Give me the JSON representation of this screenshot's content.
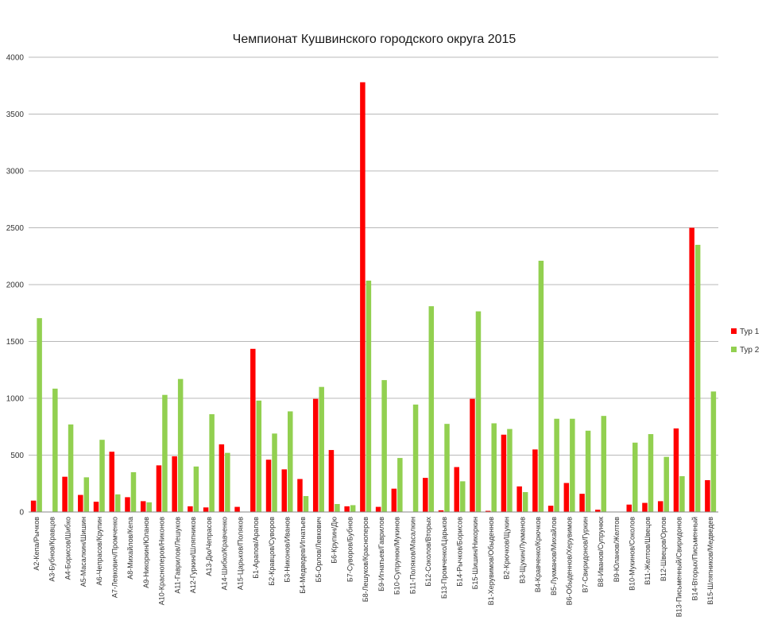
{
  "chart_data": {
    "type": "bar",
    "title": "Чемпионат Кушвинского городского округа 2015",
    "xlabel": "",
    "ylabel": "",
    "ylim": [
      0,
      4000
    ],
    "yticks": [
      0,
      500,
      1000,
      1500,
      2000,
      2500,
      3000,
      3500,
      4000
    ],
    "grid": true,
    "legend_position": "right",
    "categories": [
      "А2-Кепа/Рычков",
      "А3-Бубнов/Кравцов",
      "А4-Борисов/Шибко",
      "А5-Масалкин/Шишин",
      "А6-Чепрасов/Крупин",
      "А7-Левкович/Промченко",
      "А8-Михайлов/Кепа",
      "А9-Никоркин/Юланов",
      "А10-Красноперов/Никонов",
      "А11-Гаврилов/Лешуков",
      "А12-Гуркин/Шляпников",
      "А13-Дю/Чепрасов",
      "А14-Шибко/Кравченко",
      "А15-Царьков/Поляков",
      "Б1-Арапов/Арапов",
      "Б2-Кравцов/Суворов",
      "Б3-Никонов/Иванов",
      "Б4-Медведев/Игнатьев",
      "Б5-Орлов/Левкович",
      "Б6-Крупин/Дю",
      "Б7-Суворов/Бубнов",
      "Б8-Лешуков/Красноперов",
      "Б9-Игнатьев/Гаврилов",
      "Б10-Супрунюк/Мукинов",
      "Б11-Поляков/Масалкин",
      "Б12-Соколов/Вторых",
      "Б13-Промченко/Царьков",
      "Б14-Рычков/Борисов",
      "Б15-Шишин/Никоркин",
      "В1-Херувимов/Обыденнов",
      "В2-Крючков/Щукин",
      "В3-Щукин/Лукманов",
      "В4-Кравченко/Крючков",
      "В5-Лукманов/Михайлов",
      "В6-Обыденнов/Херувимов",
      "В7-Свиридонов/Гуркин",
      "В8-Иванов/Супрунюк",
      "В9-Юланов/Желтов",
      "В10-Мукинов/Соколов",
      "В11-Желтов/Швецов",
      "В12-Швецов/Орлов",
      "В13-Письменный/Свиридонов",
      "В14-Вторых/Письменный",
      "В15-Шляпников/Медведев"
    ],
    "series": [
      {
        "name": "Тур 1",
        "color": "#ff0000",
        "values": [
          100,
          0,
          310,
          150,
          90,
          530,
          130,
          95,
          410,
          490,
          50,
          40,
          595,
          45,
          1435,
          460,
          375,
          290,
          995,
          545,
          50,
          3780,
          45,
          205,
          0,
          300,
          15,
          395,
          995,
          10,
          680,
          225,
          550,
          55,
          255,
          160,
          20,
          0,
          65,
          80,
          95,
          735,
          2500,
          280
        ]
      },
      {
        "name": "Тур 2",
        "color": "#92d050",
        "values": [
          1705,
          1085,
          770,
          305,
          635,
          155,
          350,
          85,
          1030,
          1170,
          400,
          860,
          520,
          0,
          980,
          690,
          885,
          140,
          1100,
          70,
          60,
          2035,
          1160,
          475,
          945,
          1810,
          775,
          270,
          1765,
          780,
          730,
          175,
          2210,
          820,
          820,
          715,
          845,
          0,
          610,
          685,
          485,
          315,
          2350,
          1060
        ]
      }
    ]
  }
}
